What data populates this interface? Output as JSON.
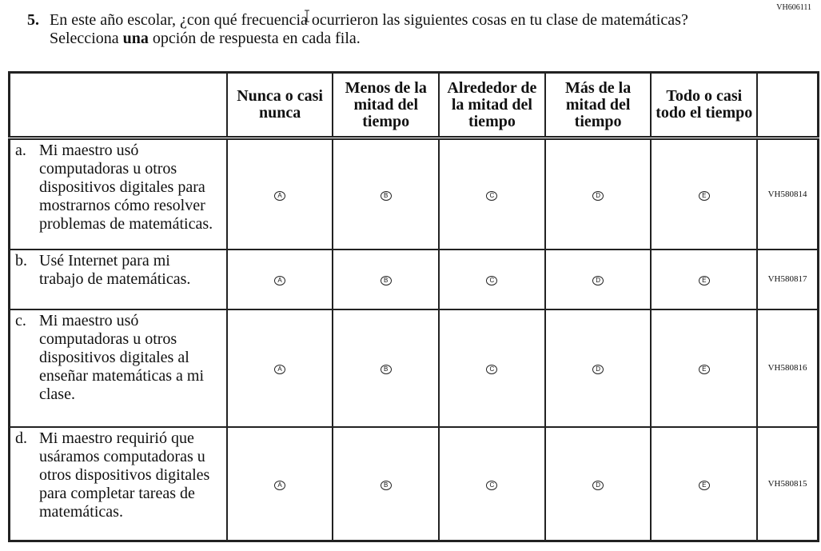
{
  "item_code": "VH606111",
  "question": {
    "number": "5.",
    "text_before": "En este año escolar, ¿con qué frecuencia ocurrieron las siguientes cosas en tu clase de matemáticas? Selecciona ",
    "text_bold": "una",
    "text_after": " opción de respuesta en cada fila."
  },
  "columns": [
    "Nunca o casi nunca",
    "Menos de la mitad del tiempo",
    "Alrededor de la mitad del tiempo",
    "Más de la mitad del tiempo",
    "Todo o casi todo el tiempo"
  ],
  "bubbles": [
    "A",
    "B",
    "C",
    "D",
    "E"
  ],
  "rows": [
    {
      "letter": "a.",
      "text": "Mi maestro usó computadoras u otros dispositivos digitales para mostrarnos cómo resolver problemas de matemáticas.",
      "id": "VH580814"
    },
    {
      "letter": "b.",
      "text": "Usé Internet para mi trabajo de matemáticas.",
      "id": "VH580817"
    },
    {
      "letter": "c.",
      "text": "Mi maestro usó computadoras u otros dispositivos digitales al enseñar matemáticas a mi clase.",
      "id": "VH580816"
    },
    {
      "letter": "d.",
      "text": "Mi maestro requirió que usáramos computadoras u otros dispositivos digitales para completar tareas de matemáticas.",
      "id": "VH580815"
    }
  ]
}
